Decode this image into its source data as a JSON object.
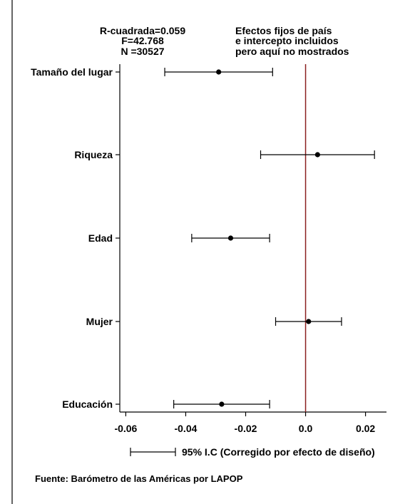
{
  "chart_data": {
    "type": "scatter",
    "categories": [
      "Tamaño del lugar",
      "Riqueza",
      "Edad",
      "Mujer",
      "Educación"
    ],
    "series": [
      {
        "values": [
          -0.029,
          0.004,
          -0.025,
          0.001,
          -0.028
        ],
        "ci_low": [
          -0.047,
          -0.015,
          -0.038,
          -0.01,
          -0.044
        ],
        "ci_high": [
          -0.011,
          0.023,
          -0.012,
          0.012,
          -0.012
        ]
      }
    ],
    "x_ticks": [
      -0.06,
      -0.04,
      -0.02,
      0.0,
      0.02
    ],
    "x_tick_labels": [
      "-0.06",
      "-0.04",
      "-0.02",
      "0.0",
      "0.02"
    ],
    "xlim": [
      -0.062,
      0.027
    ],
    "reference_line": 0.0,
    "grid": false,
    "legend_position": "bottom",
    "legend_label": "95% I.C (Corregido por efecto de diseño)",
    "stats": {
      "r2": "R-cuadrada=0.059",
      "f": "F=42.768",
      "n": "N =30527"
    },
    "note": {
      "line1": "Efectos fijos de país",
      "line2": "e intercepto incluidos",
      "line3": "pero aquí no mostrados"
    },
    "source": "Fuente: Barómetro de las Américas por LAPOP",
    "colors": {
      "reference_line": "#8B2020",
      "marks": "#000000"
    }
  }
}
